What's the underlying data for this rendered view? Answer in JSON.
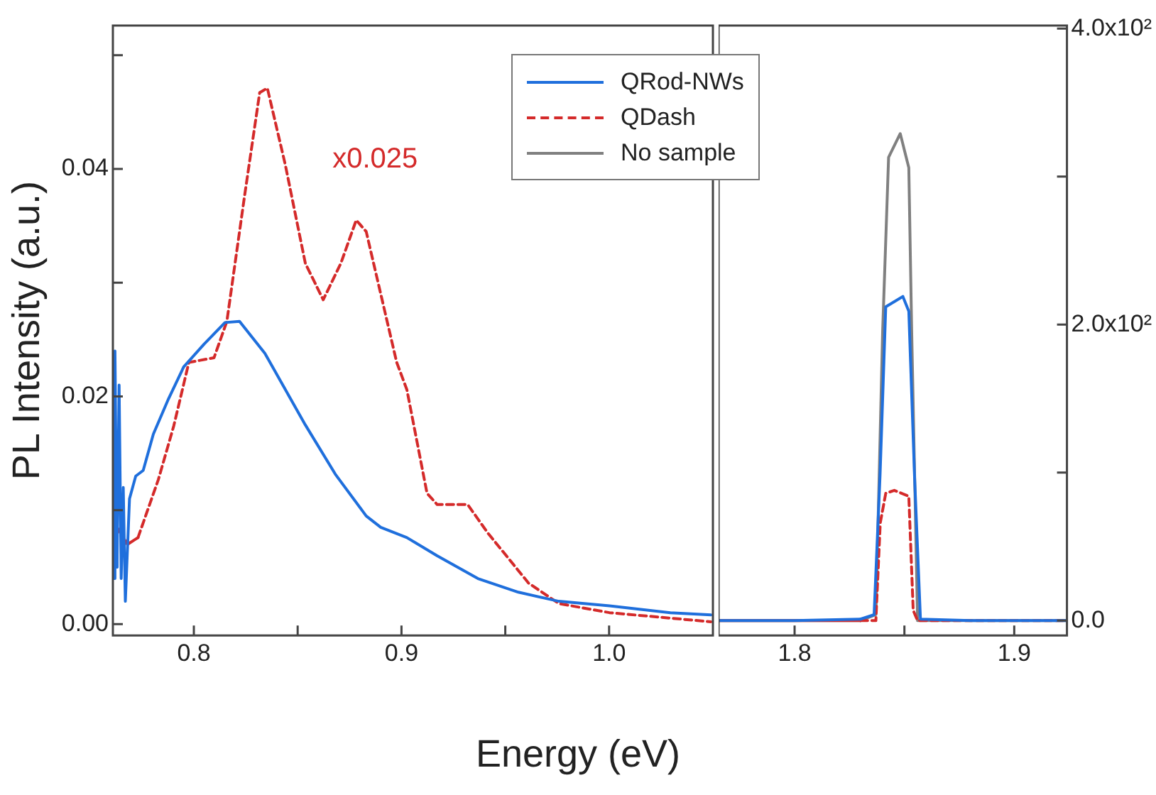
{
  "chart_data": [
    {
      "type": "line",
      "xlabel": "Energy (eV)",
      "ylabel": "PL Intensity (a.u.)",
      "xlim": [
        0.761,
        1.05
      ],
      "ylim": [
        -0.001,
        0.0526
      ],
      "xticks": [
        0.8,
        {
          "value": 0.85,
          "label": null
        },
        0.9,
        {
          "value": 0.95,
          "label": null
        },
        {
          "value": 1.0,
          "label": "1.0"
        }
      ],
      "yticks": [
        {
          "value": 0,
          "label": "0.00"
        },
        {
          "value": 0.01,
          "label": null
        },
        0.02,
        {
          "value": 0.03,
          "label": null
        },
        0.04,
        {
          "value": 0.05,
          "label": null
        }
      ],
      "annotations": [
        "x0.025"
      ],
      "series": [
        {
          "color": "#1f6fdc",
          "line_style": "solid",
          "x": [
            0.7615,
            0.762,
            0.763,
            0.764,
            0.765,
            0.766,
            0.767,
            0.769,
            0.772,
            0.7756,
            0.7805,
            0.7878,
            0.7951,
            0.8049,
            0.815,
            0.822,
            0.8342,
            0.8537,
            0.8684,
            0.883,
            0.89,
            0.9026,
            0.9172,
            0.9368,
            0.9563,
            0.9758,
            1.0002,
            1.0295,
            1.049
          ],
          "values": [
            0.004,
            0.024,
            0.005,
            0.021,
            0.004,
            0.012,
            0.002,
            0.011,
            0.013,
            0.0135,
            0.0167,
            0.0198,
            0.0226,
            0.0246,
            0.0265,
            0.0266,
            0.0238,
            0.0175,
            0.0131,
            0.0095,
            0.0085,
            0.0076,
            0.006,
            0.004,
            0.0028,
            0.002,
            0.0016,
            0.001,
            0.0008
          ]
        },
        {
          "color": "#d42a2a",
          "line_style": "dashed",
          "x": [
            0.762,
            0.768,
            0.7731,
            0.7829,
            0.7903,
            0.7976,
            0.8097,
            0.8159,
            0.8244,
            0.8317,
            0.8354,
            0.844,
            0.8537,
            0.8623,
            0.8708,
            0.8782,
            0.883,
            0.8977,
            0.9026,
            0.9123,
            0.9172,
            0.9319,
            0.9416,
            0.9612,
            0.9758,
            1.0002,
            1.049
          ],
          "values": [
            0.0088,
            0.007,
            0.0076,
            0.0127,
            0.0174,
            0.023,
            0.0234,
            0.0266,
            0.0376,
            0.0467,
            0.0471,
            0.0404,
            0.0317,
            0.0285,
            0.0317,
            0.0355,
            0.0345,
            0.023,
            0.0206,
            0.0115,
            0.0105,
            0.0105,
            0.008,
            0.0036,
            0.0018,
            0.001,
            0.0002
          ]
        }
      ]
    },
    {
      "type": "line",
      "xlim": [
        1.7654,
        1.924
      ],
      "ylim": [
        -10,
        402
      ],
      "legend": "top left",
      "xticks": [
        1.8,
        {
          "value": 1.85,
          "label": null
        },
        1.9
      ],
      "yticks": [
        {
          "value": 0,
          "label": "0.0"
        },
        {
          "value": 100,
          "label": null
        },
        {
          "value": 200,
          "label": "2.0x10²"
        },
        {
          "value": 300,
          "label": null
        },
        {
          "value": 400,
          "label": "4.0x10²"
        }
      ],
      "series": [
        {
          "name": "QRod-NWs",
          "color": "#1f6fdc",
          "line_style": "solid",
          "x": [
            1.7654,
            1.8,
            1.83,
            1.8362,
            1.8389,
            1.8415,
            1.8493,
            1.852,
            1.8546,
            1.8573,
            1.88,
            1.924
          ],
          "values": [
            0,
            0,
            1,
            4,
            98,
            212,
            219,
            209,
            98,
            1,
            0,
            0
          ]
        },
        {
          "name": "QDash",
          "color": "#d42a2a",
          "line_style": "dashed",
          "x": [
            1.7654,
            1.8,
            1.83,
            1.837,
            1.839,
            1.8415,
            1.8454,
            1.852,
            1.854,
            1.856,
            1.88,
            1.924
          ],
          "values": [
            0,
            0,
            0,
            0,
            66,
            86,
            88,
            84,
            7,
            0,
            0,
            0
          ]
        },
        {
          "name": "No sample",
          "color": "#808080",
          "line_style": "solid",
          "x": [
            1.7654,
            1.8,
            1.83,
            1.837,
            1.8401,
            1.8428,
            1.8481,
            1.852,
            1.8533,
            1.856,
            1.88,
            1.924
          ],
          "values": [
            0,
            0,
            0,
            4,
            196,
            313,
            329,
            306,
            196,
            0,
            0,
            0
          ]
        }
      ]
    }
  ]
}
